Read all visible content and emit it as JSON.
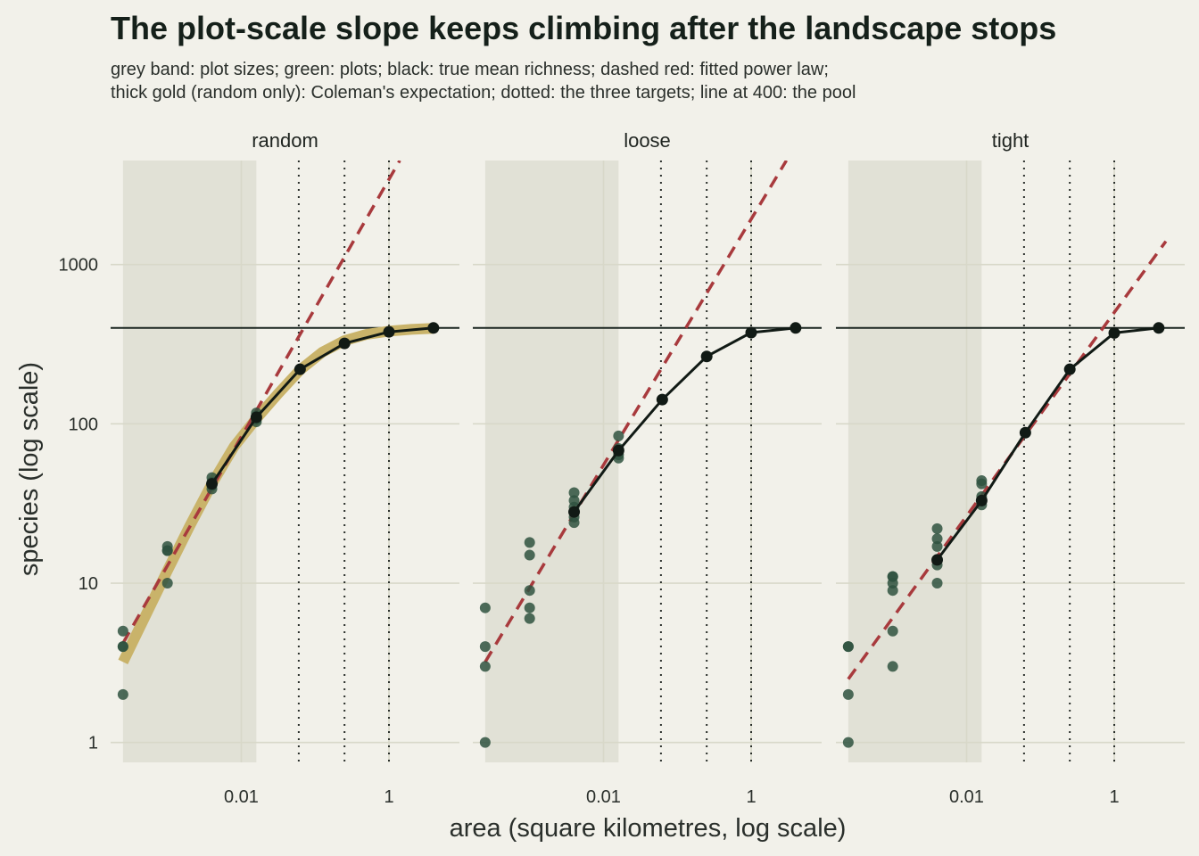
{
  "chart_data": {
    "type": "scatter",
    "title": "The plot-scale slope keeps climbing after the landscape stops",
    "subtitle": [
      "grey band: plot sizes; green: plots; black: true mean richness; dashed red: fitted power law;",
      "thick gold (random only): Coleman's expectation; dotted: the three targets; line at 400: the pool"
    ],
    "xlabel": "area (square kilometres, log scale)",
    "ylabel": "species (log scale)",
    "x_scale": "log10",
    "y_scale": "log10",
    "xlim": [
      0.00017,
      9
    ],
    "ylim": [
      0.75,
      4500
    ],
    "x_ticks": [
      {
        "value": 0.01,
        "label": "0.01"
      },
      {
        "value": 1,
        "label": "1"
      }
    ],
    "y_ticks": [
      {
        "value": 1,
        "label": "1"
      },
      {
        "value": 10,
        "label": "10"
      },
      {
        "value": 100,
        "label": "100"
      },
      {
        "value": 1000,
        "label": "1000"
      }
    ],
    "plot_size_band": [
      0.00025,
      0.016
    ],
    "targets": [
      0.06,
      0.25,
      1
    ],
    "pool": 400,
    "colors": {
      "background": "#f2f1ea",
      "band": "#e1e1d6",
      "grid": "#d8d8c9",
      "plots": "#2f5240",
      "truth": "#111a15",
      "fit": "#a83a3d",
      "coleman": "#c9b36a"
    },
    "panels": [
      {
        "name": "random",
        "plots": {
          "x": [
            0.00025,
            0.00025,
            0.00025,
            0.00025,
            0.001,
            0.001,
            0.001,
            0.001,
            0.004,
            0.004,
            0.004,
            0.004,
            0.016,
            0.016,
            0.016,
            0.016
          ],
          "y": [
            2,
            4,
            4,
            5,
            10,
            16,
            16,
            17,
            39,
            41,
            43,
            46,
            103,
            107,
            112,
            117
          ]
        },
        "truth": {
          "x": [
            0.004,
            0.016,
            0.0625,
            0.25,
            1,
            4
          ],
          "y": [
            42,
            110,
            220,
            320,
            378,
            400
          ]
        },
        "fit": {
          "x": [
            0.00025,
            1.4
          ],
          "y": [
            4.2,
            4500
          ]
        },
        "coleman": {
          "x": [
            0.00025,
            0.0005,
            0.001,
            0.002,
            0.004,
            0.008,
            0.016,
            0.0316,
            0.0625,
            0.125,
            0.25,
            0.5,
            1,
            2,
            4
          ],
          "y": [
            3.2,
            6.2,
            12,
            22.8,
            42,
            72,
            108,
            155,
            218,
            282,
            333,
            365,
            382,
            392,
            398
          ]
        }
      },
      {
        "name": "loose",
        "plots": {
          "x": [
            0.00025,
            0.00025,
            0.00025,
            0.00025,
            0.001,
            0.001,
            0.001,
            0.001,
            0.001,
            0.004,
            0.004,
            0.004,
            0.004,
            0.004,
            0.016,
            0.016,
            0.016,
            0.016,
            0.016
          ],
          "y": [
            1,
            3,
            4,
            7,
            6,
            7,
            9,
            15,
            18,
            24,
            26,
            30,
            33,
            37,
            61,
            64,
            67,
            70,
            84
          ]
        },
        "truth": {
          "x": [
            0.004,
            0.016,
            0.0625,
            0.25,
            1,
            4
          ],
          "y": [
            28,
            68,
            142,
            265,
            374,
            400
          ]
        },
        "fit": {
          "x": [
            0.00025,
            3
          ],
          "y": [
            3.2,
            4500
          ]
        },
        "coleman": null
      },
      {
        "name": "tight",
        "plots": {
          "x": [
            0.00025,
            0.00025,
            0.00025,
            0.00025,
            0.001,
            0.001,
            0.001,
            0.001,
            0.001,
            0.001,
            0.004,
            0.004,
            0.004,
            0.004,
            0.004,
            0.004,
            0.016,
            0.016,
            0.016,
            0.016,
            0.016
          ],
          "y": [
            1,
            2,
            4,
            4,
            3,
            5,
            9,
            10,
            11,
            11,
            10,
            13,
            14,
            17,
            19,
            22,
            31,
            33,
            35,
            42,
            44
          ]
        },
        "truth": {
          "x": [
            0.004,
            0.016,
            0.0625,
            0.25,
            1,
            4
          ],
          "y": [
            14,
            33,
            88,
            220,
            372,
            400
          ]
        },
        "fit": {
          "x": [
            0.00025,
            5
          ],
          "y": [
            2.5,
            1400
          ]
        },
        "coleman": null
      }
    ]
  }
}
